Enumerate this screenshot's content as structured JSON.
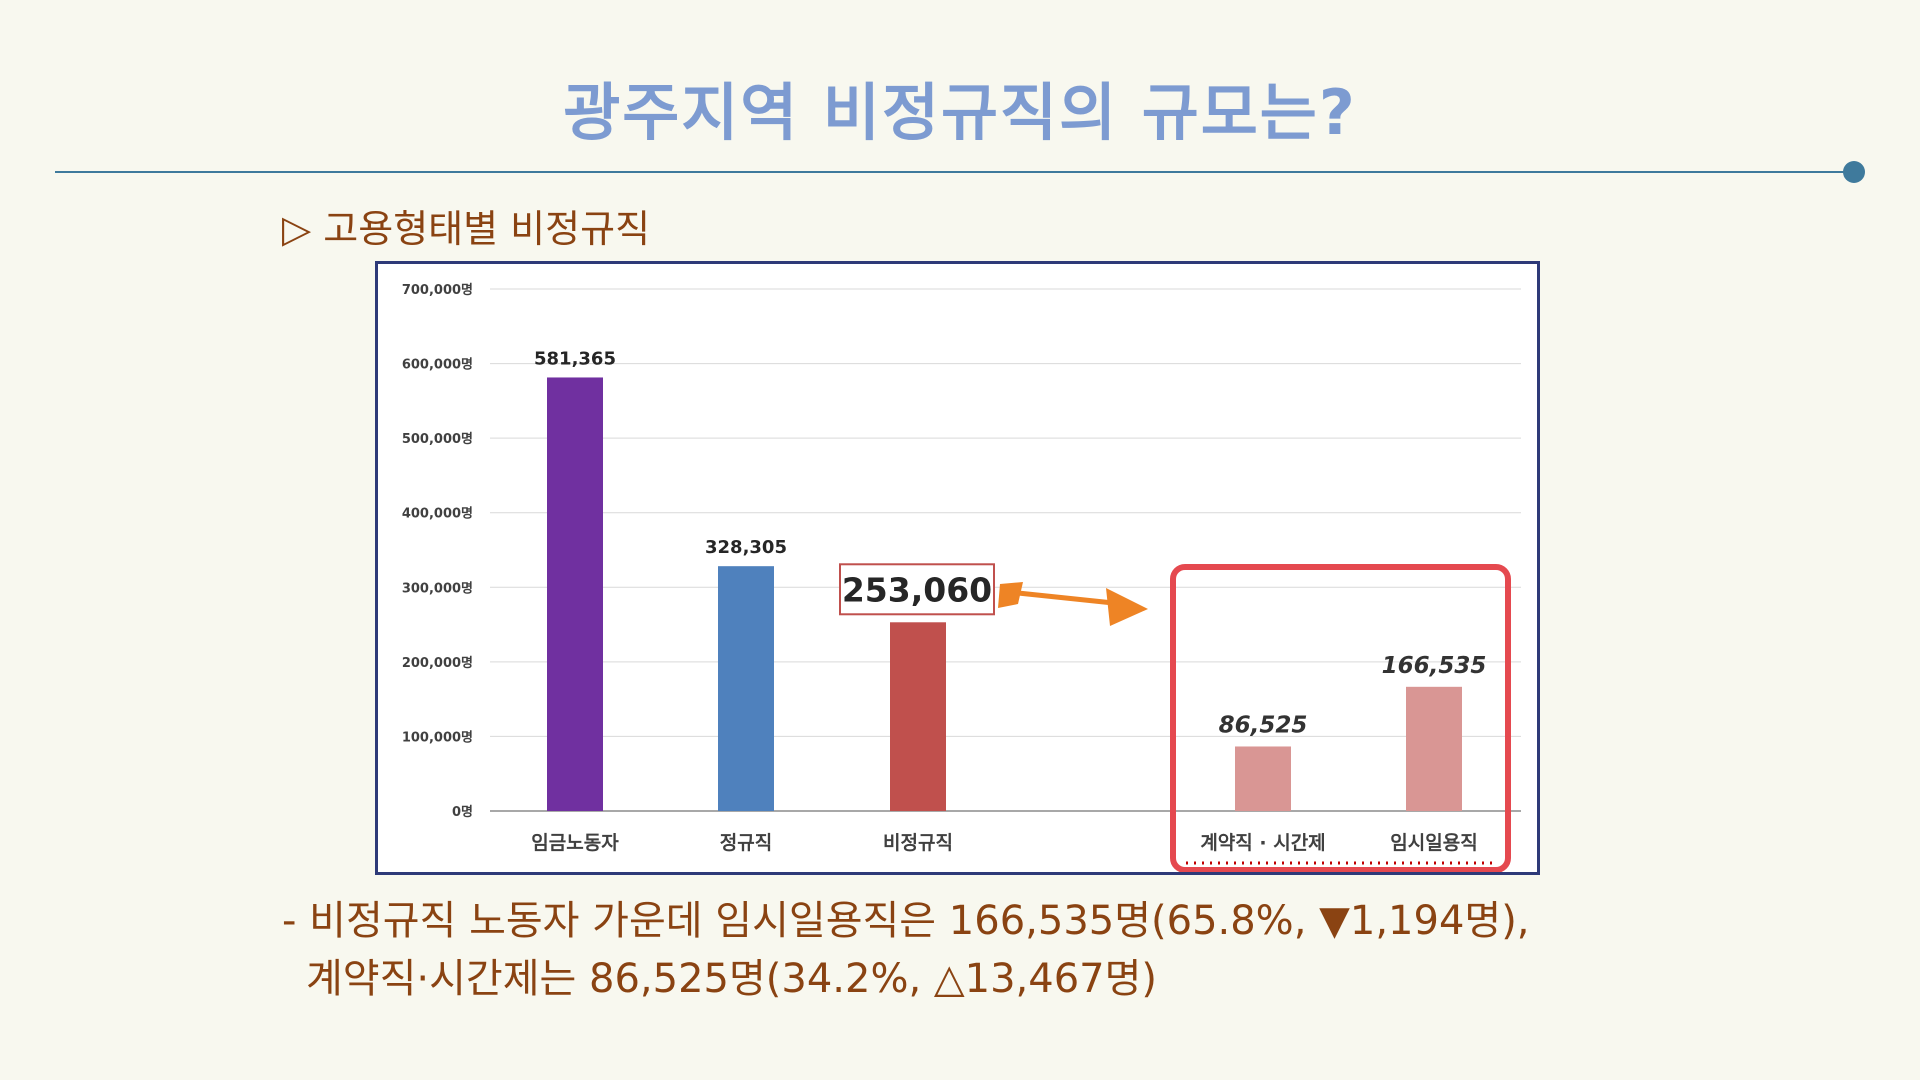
{
  "page": {
    "title": "광주지역 비정규직의 규모는?",
    "subtitle": "▷ 고용형태별 비정규직",
    "notes": [
      "- 비정규직 노동자 가운데 임시일용직은 166,535명(65.8%, ▼1,194명),",
      "계약직·시간제는 86,525명(34.2%, △13,467명)"
    ]
  },
  "colors": {
    "title": "#7d9bd1",
    "text": "#8a4312",
    "rule": "#3f7a9c",
    "highlight_box": "#e5494f",
    "arrow": "#ee8425"
  },
  "chart_data": {
    "type": "bar",
    "categories": [
      "임금노동자",
      "정규직",
      "비정규직",
      "계약직 · 시간제",
      "임시일용직"
    ],
    "values": [
      581365,
      328305,
      253060,
      86525,
      166535
    ],
    "value_labels": [
      "581,365",
      "328,305",
      "253,060",
      "86,525",
      "166,535"
    ],
    "bar_colors": [
      "#7030a0",
      "#4f81bd",
      "#c0504d",
      "#d99694",
      "#d99694"
    ],
    "y_ticks": [
      {
        "value": 0,
        "label": "0명"
      },
      {
        "value": 100000,
        "label": "100,000명"
      },
      {
        "value": 200000,
        "label": "200,000명"
      },
      {
        "value": 300000,
        "label": "300,000명"
      },
      {
        "value": 400000,
        "label": "400,000명"
      },
      {
        "value": 500000,
        "label": "500,000명"
      },
      {
        "value": 600000,
        "label": "600,000명"
      },
      {
        "value": 700000,
        "label": "700,000명"
      }
    ],
    "ylim": [
      0,
      700000
    ],
    "grid": true,
    "legend": "none",
    "title": "",
    "xlabel": "",
    "ylabel": ""
  }
}
